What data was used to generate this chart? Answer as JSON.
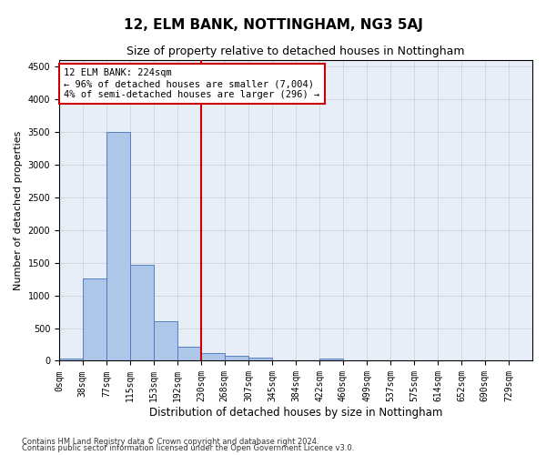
{
  "title": "12, ELM BANK, NOTTINGHAM, NG3 5AJ",
  "subtitle": "Size of property relative to detached houses in Nottingham",
  "xlabel": "Distribution of detached houses by size in Nottingham",
  "ylabel": "Number of detached properties",
  "footnote1": "Contains HM Land Registry data © Crown copyright and database right 2024.",
  "footnote2": "Contains public sector information licensed under the Open Government Licence v3.0.",
  "annotation_line1": "12 ELM BANK: 224sqm",
  "annotation_line2": "← 96% of detached houses are smaller (7,004)",
  "annotation_line3": "4% of semi-detached houses are larger (296) →",
  "vline_x": 230,
  "bin_edges": [
    0,
    38,
    77,
    115,
    153,
    192,
    230,
    268,
    307,
    345,
    384,
    422,
    460,
    499,
    537,
    575,
    614,
    652,
    690,
    729,
    767
  ],
  "bar_heights": [
    30,
    1260,
    3500,
    1460,
    610,
    220,
    115,
    80,
    55,
    0,
    0,
    30,
    0,
    0,
    0,
    0,
    0,
    0,
    0,
    0
  ],
  "bar_color": "#aec6e8",
  "bar_edgecolor": "#4472c4",
  "vline_color": "#cc0000",
  "annotation_box_edgecolor": "#cc0000",
  "grid_color": "#cccccc",
  "background_color": "#e8eef8",
  "ylim": [
    0,
    4600
  ],
  "yticks": [
    0,
    500,
    1000,
    1500,
    2000,
    2500,
    3000,
    3500,
    4000,
    4500
  ],
  "title_fontsize": 11,
  "subtitle_fontsize": 9,
  "xlabel_fontsize": 8.5,
  "ylabel_fontsize": 8,
  "tick_fontsize": 7,
  "annotation_fontsize": 7.5,
  "footnote_fontsize": 6
}
